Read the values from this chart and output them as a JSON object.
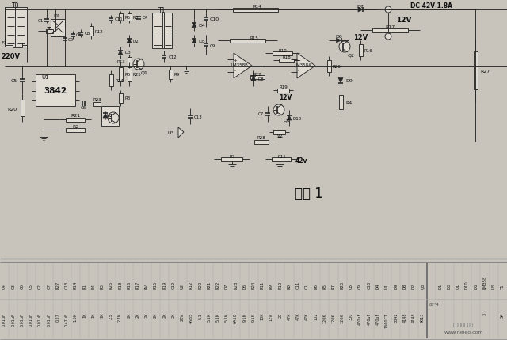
{
  "bg_color": "#d8d4cc",
  "circuit_bg": "#e8e4dc",
  "table_bg": "#d0ccc4",
  "line_color": "#303030",
  "text_color": "#101010",
  "figure_label": "图表 1",
  "dc_label": "DC 42V-1.8A",
  "v12_label1": "12V",
  "v12_label2": "12V",
  "v220_label": "220V",
  "v42_label": "42v",
  "watermark1": "山阳电器维修网",
  "watermark2": "www.neieo.com",
  "names_row": [
    "C4",
    "C3",
    "C6",
    "C5",
    "C2",
    "C7",
    "R27",
    "C13",
    "R14",
    "R1",
    "R4",
    "R3",
    "R25",
    "R18",
    "R16",
    "R17",
    "RV",
    "R15",
    "R19",
    "C12",
    "U2",
    "R12",
    "R20",
    "R21",
    "R22",
    "D7",
    "R28",
    "D5",
    "R24",
    "R11",
    "R9",
    "R10",
    "R8",
    "C11",
    "C1",
    "R6",
    "R5",
    "R7",
    "R23",
    "C8",
    "C9",
    "C10",
    "D4",
    "U1",
    "D9",
    "D8",
    "D2",
    "Q3",
    "",
    "D1",
    "D3",
    "Q1",
    "D10",
    "D6",
    "LM358",
    "U3",
    "T1"
  ],
  "vals_row": [
    "0.01uF",
    "0.01uF",
    "0.01uF",
    "0.01uF",
    "0.01uF",
    "0.01uF",
    "0.27",
    "0.47uF",
    "1.5K",
    "1K",
    "1K",
    "1K",
    "2.5",
    "2.7K",
    "2K",
    "2K",
    "2K",
    "2K",
    "2K",
    "2K",
    "2KV",
    "4N35",
    "5.1",
    "5.1K",
    "5.1K",
    "5.1K",
    "6A10",
    "9.1K",
    "9.1K",
    "10K",
    "12V",
    "20",
    "47K",
    "47K",
    "47K",
    "102",
    "120K",
    "120K",
    "120K",
    "300",
    "470uF",
    "470uF",
    "470uF",
    "1660CT",
    "3842",
    "4148",
    "4148",
    "9013",
    "",
    "",
    "",
    "",
    "",
    "",
    "3",
    "",
    "S4"
  ],
  "sep_col_idx": 48
}
